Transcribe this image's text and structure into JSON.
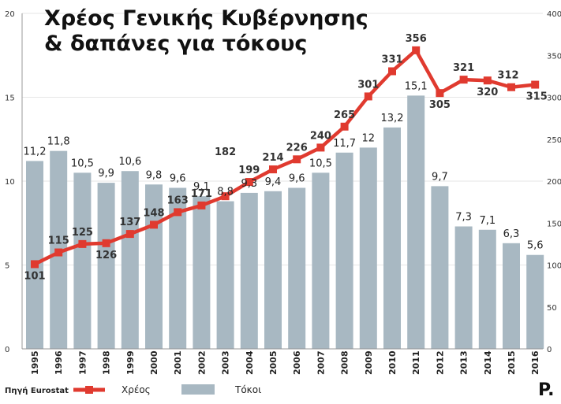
{
  "title": [
    "Χρέος Γενικής Κυβέρνησης",
    "& δαπάνες για τόκους"
  ],
  "source": "Πηγή Eurostat",
  "logo": "P.",
  "legend": [
    {
      "label": "Χρέος",
      "kind": "line",
      "color": "#e03a2f"
    },
    {
      "label": "Τόκοι",
      "kind": "bar",
      "color": "#a8b8c2"
    }
  ],
  "chart_data": {
    "type": "bar",
    "categories": [
      "1995",
      "1996",
      "1997",
      "1998",
      "1999",
      "2000",
      "2001",
      "2002",
      "2003",
      "2004",
      "2005",
      "2006",
      "2007",
      "2008",
      "2009",
      "2010",
      "2011",
      "2012",
      "2013",
      "2014",
      "2015",
      "2016"
    ],
    "series": [
      {
        "name": "Τόκοι",
        "type": "bar",
        "axis": "left",
        "color": "#a8b8c2",
        "values": [
          11.2,
          11.8,
          10.5,
          9.9,
          10.6,
          9.8,
          9.6,
          9.1,
          8.8,
          9.3,
          9.4,
          9.6,
          10.5,
          11.7,
          12,
          13.2,
          15.1,
          9.7,
          7.3,
          7.1,
          6.3,
          5.6
        ],
        "labels": [
          "11,2",
          "11,8",
          "10,5",
          "9,9",
          "10,6",
          "9,8",
          "9,6",
          "9,1",
          "8,8",
          "9,3",
          "9,4",
          "9,6",
          "10,5",
          "11,7",
          "12",
          "13,2",
          "15,1",
          "9,7",
          "7,3",
          "7,1",
          "6,3",
          "5,6"
        ]
      },
      {
        "name": "Χρέος",
        "type": "line",
        "axis": "right",
        "color": "#e03a2f",
        "values": [
          101,
          115,
          125,
          126,
          137,
          148,
          163,
          171,
          182,
          199,
          214,
          226,
          240,
          265,
          301,
          331,
          356,
          305,
          321,
          320,
          312,
          315
        ],
        "labels": [
          "101",
          "115",
          "125",
          "126",
          "137",
          "148",
          "163",
          "171",
          "182",
          "199",
          "214",
          "226",
          "240",
          "265",
          "301",
          "331",
          "356",
          "305",
          "321",
          "320",
          "312",
          "315"
        ]
      }
    ],
    "y_left": {
      "ylim": [
        0,
        20
      ],
      "ticks": [
        "0",
        "5",
        "10",
        "15",
        "20"
      ]
    },
    "y_right": {
      "ylim": [
        0,
        400
      ],
      "ticks": [
        "0",
        "50",
        "100",
        "150",
        "200",
        "250",
        "300",
        "350",
        "400"
      ]
    },
    "grid": true,
    "legend_position": "bottom-center"
  }
}
